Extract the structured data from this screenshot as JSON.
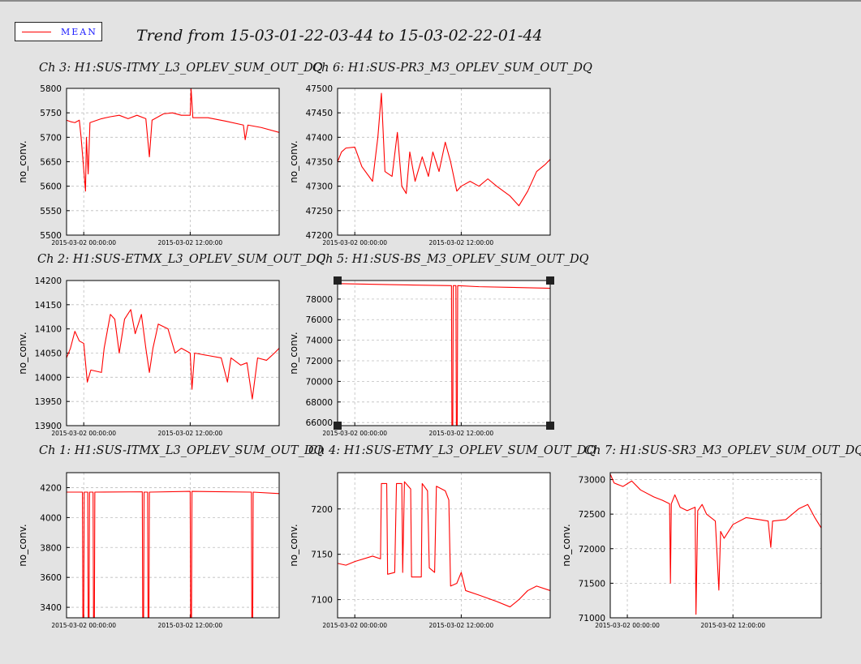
{
  "header": {
    "legend_label": "MEAN",
    "title": "Trend from 15-03-01-22-03-44 to 15-03-02-22-01-44"
  },
  "colors": {
    "series": "#ff0000",
    "background": "#e3e3e3",
    "grid": "#bdbdbd"
  },
  "chart_data": [
    {
      "id": "ch3",
      "type": "line",
      "title": "Ch 3: H1:SUS-ITMY_L3_OPLEV_SUM_OUT_DQ",
      "ylabel": "no_conv.",
      "ylim": [
        5500,
        5800
      ],
      "yticks": [
        5500,
        5550,
        5600,
        5650,
        5700,
        5750,
        5800
      ],
      "xlim_hours": [
        -1.94,
        22.03
      ],
      "xticks": [
        {
          "h": 0,
          "label": "2015-03-02 00:00:00"
        },
        {
          "h": 12,
          "label": "2015-03-02 12:00:00"
        }
      ],
      "series": [
        {
          "name": "MEAN",
          "points": [
            [
              -1.94,
              5735
            ],
            [
              -1.5,
              5732
            ],
            [
              -1.0,
              5730
            ],
            [
              -0.5,
              5735
            ],
            [
              -0.3,
              5700
            ],
            [
              0.2,
              5590
            ],
            [
              0.3,
              5700
            ],
            [
              0.5,
              5625
            ],
            [
              0.7,
              5730
            ],
            [
              2,
              5738
            ],
            [
              3,
              5742
            ],
            [
              4,
              5745
            ],
            [
              5,
              5738
            ],
            [
              6,
              5745
            ],
            [
              7,
              5738
            ],
            [
              7.4,
              5660
            ],
            [
              7.7,
              5735
            ],
            [
              9,
              5748
            ],
            [
              10,
              5750
            ],
            [
              11,
              5745
            ],
            [
              12,
              5745
            ],
            [
              12.1,
              5800
            ],
            [
              12.3,
              5740
            ],
            [
              14,
              5740
            ],
            [
              16,
              5733
            ],
            [
              18,
              5725
            ],
            [
              18.2,
              5695
            ],
            [
              18.5,
              5725
            ],
            [
              20,
              5720
            ],
            [
              22.03,
              5710
            ]
          ]
        }
      ]
    },
    {
      "id": "ch6",
      "type": "line",
      "title": "Ch 6: H1:SUS-PR3_M3_OPLEV_SUM_OUT_DQ",
      "ylabel": "no_conv.",
      "ylim": [
        47200,
        47500
      ],
      "yticks": [
        47200,
        47250,
        47300,
        47350,
        47400,
        47450,
        47500
      ],
      "xlim_hours": [
        -1.94,
        22.03
      ],
      "xticks": [
        {
          "h": 0,
          "label": "2015-03-02 00:00:00"
        },
        {
          "h": 12,
          "label": "2015-03-02 12:00:00"
        }
      ],
      "series": [
        {
          "name": "MEAN",
          "points": [
            [
              -1.94,
              47350
            ],
            [
              -1.5,
              47370
            ],
            [
              -1.0,
              47378
            ],
            [
              0.0,
              47380
            ],
            [
              0.8,
              47340
            ],
            [
              2,
              47310
            ],
            [
              2.6,
              47400
            ],
            [
              3.0,
              47490
            ],
            [
              3.4,
              47330
            ],
            [
              4.2,
              47320
            ],
            [
              4.8,
              47410
            ],
            [
              5.3,
              47300
            ],
            [
              5.8,
              47285
            ],
            [
              6.2,
              47370
            ],
            [
              6.8,
              47310
            ],
            [
              7.6,
              47360
            ],
            [
              8.3,
              47320
            ],
            [
              8.8,
              47370
            ],
            [
              9.5,
              47330
            ],
            [
              10.2,
              47390
            ],
            [
              10.8,
              47350
            ],
            [
              11.5,
              47290
            ],
            [
              12,
              47300
            ],
            [
              13,
              47310
            ],
            [
              14,
              47300
            ],
            [
              15,
              47315
            ],
            [
              16,
              47300
            ],
            [
              17.5,
              47280
            ],
            [
              18.5,
              47260
            ],
            [
              19.5,
              47290
            ],
            [
              20.5,
              47330
            ],
            [
              21.5,
              47345
            ],
            [
              22.03,
              47355
            ]
          ]
        }
      ]
    },
    {
      "id": "ch2",
      "type": "line",
      "title": "Ch 2: H1:SUS-ETMX_L3_OPLEV_SUM_OUT_DQ",
      "ylabel": "no_conv.",
      "ylim": [
        13900,
        14200
      ],
      "yticks": [
        13900,
        13950,
        14000,
        14050,
        14100,
        14150,
        14200
      ],
      "xlim_hours": [
        -1.94,
        22.03
      ],
      "xticks": [
        {
          "h": 0,
          "label": "2015-03-02 00:00:00"
        },
        {
          "h": 12,
          "label": "2015-03-02 12:00:00"
        }
      ],
      "series": [
        {
          "name": "MEAN",
          "points": [
            [
              -1.94,
              14040
            ],
            [
              -1.5,
              14060
            ],
            [
              -1.0,
              14095
            ],
            [
              -0.5,
              14075
            ],
            [
              0.0,
              14070
            ],
            [
              0.4,
              13990
            ],
            [
              0.8,
              14015
            ],
            [
              2,
              14010
            ],
            [
              2.3,
              14060
            ],
            [
              3,
              14130
            ],
            [
              3.5,
              14120
            ],
            [
              4.0,
              14050
            ],
            [
              4.6,
              14120
            ],
            [
              5.3,
              14140
            ],
            [
              5.8,
              14090
            ],
            [
              6.5,
              14130
            ],
            [
              7,
              14060
            ],
            [
              7.4,
              14010
            ],
            [
              7.8,
              14060
            ],
            [
              8.4,
              14110
            ],
            [
              9.5,
              14100
            ],
            [
              10.3,
              14050
            ],
            [
              11,
              14060
            ],
            [
              12,
              14050
            ],
            [
              12.2,
              13975
            ],
            [
              12.5,
              14050
            ],
            [
              14,
              14045
            ],
            [
              15.5,
              14040
            ],
            [
              16.2,
              13990
            ],
            [
              16.6,
              14040
            ],
            [
              17.7,
              14025
            ],
            [
              18.4,
              14030
            ],
            [
              19.0,
              13955
            ],
            [
              19.6,
              14040
            ],
            [
              20.6,
              14035
            ],
            [
              21.5,
              14050
            ],
            [
              22.03,
              14060
            ]
          ]
        }
      ]
    },
    {
      "id": "ch5",
      "type": "line",
      "title": "Ch 5: H1:SUS-BS_M3_OPLEV_SUM_OUT_DQ",
      "ylabel": "no_conv.",
      "ylim": [
        65700,
        79800
      ],
      "yticks": [
        66000,
        68000,
        70000,
        72000,
        74000,
        76000,
        78000
      ],
      "xlim_hours": [
        -1.94,
        22.03
      ],
      "xticks": [
        {
          "h": 0,
          "label": "2015-03-02 00:00:00"
        },
        {
          "h": 12,
          "label": "2015-03-02 12:00:00"
        }
      ],
      "series": [
        {
          "name": "MEAN",
          "points": [
            [
              -1.94,
              79500
            ],
            [
              4,
              79400
            ],
            [
              10.9,
              79300
            ],
            [
              10.95,
              65700
            ],
            [
              11.05,
              65700
            ],
            [
              11.1,
              79300
            ],
            [
              11.4,
              79300
            ],
            [
              11.45,
              65700
            ],
            [
              11.55,
              65700
            ],
            [
              11.6,
              79300
            ],
            [
              14,
              79200
            ],
            [
              22.03,
              79050
            ]
          ]
        }
      ]
    },
    {
      "id": "ch1",
      "type": "line",
      "title": "Ch 1: H1:SUS-ITMX_L3_OPLEV_SUM_OUT_DQ",
      "ylabel": "no_conv.",
      "ylim": [
        3330,
        4300
      ],
      "yticks": [
        3400,
        3600,
        3800,
        4000,
        4200
      ],
      "xlim_hours": [
        -1.94,
        22.03
      ],
      "xticks": [
        {
          "h": 0,
          "label": "2015-03-02 00:00:00"
        },
        {
          "h": 12,
          "label": "2015-03-02 12:00:00"
        }
      ],
      "series": [
        {
          "name": "MEAN",
          "points": [
            [
              -1.94,
              4170
            ],
            [
              -0.15,
              4170
            ],
            [
              -0.1,
              3330
            ],
            [
              0.0,
              3330
            ],
            [
              0.05,
              4170
            ],
            [
              0.45,
              4170
            ],
            [
              0.5,
              3330
            ],
            [
              0.6,
              3330
            ],
            [
              0.65,
              4170
            ],
            [
              1.05,
              4170
            ],
            [
              1.1,
              3330
            ],
            [
              1.2,
              3330
            ],
            [
              1.25,
              4170
            ],
            [
              6.6,
              4172
            ],
            [
              6.65,
              3330
            ],
            [
              6.75,
              3330
            ],
            [
              6.8,
              4170
            ],
            [
              7.2,
              4170
            ],
            [
              7.25,
              3330
            ],
            [
              7.35,
              3330
            ],
            [
              7.4,
              4170
            ],
            [
              12.0,
              4175
            ],
            [
              12.05,
              3330
            ],
            [
              12.15,
              3330
            ],
            [
              12.2,
              4175
            ],
            [
              18.9,
              4170
            ],
            [
              18.95,
              3330
            ],
            [
              19.05,
              3330
            ],
            [
              19.1,
              4170
            ],
            [
              22.03,
              4160
            ]
          ]
        }
      ]
    },
    {
      "id": "ch4",
      "type": "line",
      "title": "Ch 4: H1:SUS-ETMY_L3_OPLEV_SUM_OUT_DQ",
      "ylabel": "no_conv.",
      "ylim": [
        7080,
        7240
      ],
      "yticks": [
        7100,
        7150,
        7200
      ],
      "xlim_hours": [
        -1.94,
        22.03
      ],
      "xticks": [
        {
          "h": 0,
          "label": "2015-03-02 00:00:00"
        },
        {
          "h": 12,
          "label": "2015-03-02 12:00:00"
        }
      ],
      "series": [
        {
          "name": "MEAN",
          "points": [
            [
              -1.94,
              7140
            ],
            [
              -1.0,
              7138
            ],
            [
              0,
              7142
            ],
            [
              2,
              7148
            ],
            [
              2.9,
              7145
            ],
            [
              3.0,
              7228
            ],
            [
              3.6,
              7228
            ],
            [
              3.7,
              7128
            ],
            [
              4.5,
              7130
            ],
            [
              4.7,
              7228
            ],
            [
              5.3,
              7228
            ],
            [
              5.4,
              7130
            ],
            [
              5.6,
              7230
            ],
            [
              6.3,
              7222
            ],
            [
              6.4,
              7125
            ],
            [
              7.5,
              7125
            ],
            [
              7.6,
              7228
            ],
            [
              8.2,
              7220
            ],
            [
              8.4,
              7135
            ],
            [
              9.0,
              7130
            ],
            [
              9.2,
              7225
            ],
            [
              10.2,
              7220
            ],
            [
              10.6,
              7210
            ],
            [
              10.8,
              7115
            ],
            [
              11.5,
              7118
            ],
            [
              12,
              7130
            ],
            [
              12.5,
              7110
            ],
            [
              14,
              7105
            ],
            [
              16,
              7098
            ],
            [
              17.5,
              7092
            ],
            [
              18.5,
              7100
            ],
            [
              19.5,
              7110
            ],
            [
              20.5,
              7115
            ],
            [
              22.03,
              7110
            ]
          ]
        }
      ]
    },
    {
      "id": "ch7",
      "type": "line",
      "title": "Ch 7: H1:SUS-SR3_M3_OPLEV_SUM_OUT_DQ",
      "ylabel": "no_conv.",
      "ylim": [
        71000,
        73100
      ],
      "yticks": [
        71000,
        71500,
        72000,
        72500,
        73000
      ],
      "xlim_hours": [
        -1.94,
        22.03
      ],
      "xticks": [
        {
          "h": 0,
          "label": "2015-03-02 00:00:00"
        },
        {
          "h": 12,
          "label": "2015-03-02 12:00:00"
        }
      ],
      "series": [
        {
          "name": "MEAN",
          "points": [
            [
              -1.94,
              73080
            ],
            [
              -1.5,
              72950
            ],
            [
              -0.5,
              72900
            ],
            [
              0.5,
              72980
            ],
            [
              1.5,
              72850
            ],
            [
              3,
              72750
            ],
            [
              4,
              72700
            ],
            [
              4.8,
              72650
            ],
            [
              4.9,
              71500
            ],
            [
              5.0,
              72650
            ],
            [
              5.4,
              72780
            ],
            [
              6,
              72600
            ],
            [
              6.8,
              72550
            ],
            [
              7.7,
              72600
            ],
            [
              7.8,
              71050
            ],
            [
              8.0,
              72550
            ],
            [
              8.5,
              72640
            ],
            [
              9,
              72500
            ],
            [
              10,
              72400
            ],
            [
              10.4,
              71400
            ],
            [
              10.6,
              72250
            ],
            [
              11,
              72150
            ],
            [
              12,
              72350
            ],
            [
              13.5,
              72450
            ],
            [
              15,
              72420
            ],
            [
              16,
              72400
            ],
            [
              16.3,
              72020
            ],
            [
              16.5,
              72400
            ],
            [
              18,
              72420
            ],
            [
              19.5,
              72580
            ],
            [
              20.5,
              72640
            ],
            [
              21.3,
              72450
            ],
            [
              22.03,
              72300
            ]
          ]
        }
      ]
    }
  ]
}
